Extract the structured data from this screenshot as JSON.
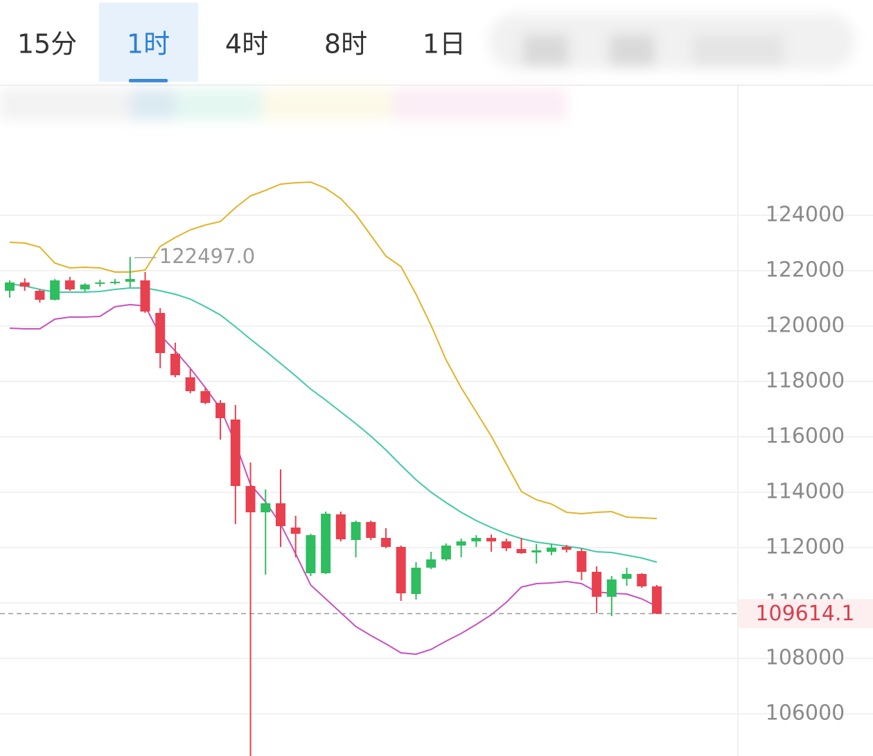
{
  "tabs": [
    {
      "label": "15分",
      "active": false
    },
    {
      "label": "1时",
      "active": true
    },
    {
      "label": "4时",
      "active": false
    },
    {
      "label": "8时",
      "active": false
    },
    {
      "label": "1日",
      "active": false
    }
  ],
  "chart_data": {
    "type": "candlestick",
    "up_color": "#2ebd5f",
    "down_color": "#e8404e",
    "ylim": [
      104475,
      127400
    ],
    "yticks": [
      106000,
      108000,
      110000,
      112000,
      114000,
      116000,
      118000,
      120000,
      122000,
      124000
    ],
    "grid": true,
    "max_marker": "122497.0",
    "ohlc": {
      "open": [
        121275,
        121575,
        121275,
        120950,
        121650,
        121325,
        121550,
        121575,
        121600,
        121650,
        120475,
        119000,
        118150,
        117650,
        117225,
        116625,
        114225,
        113275,
        113600,
        112725,
        111075,
        111075,
        113200,
        112275,
        112925,
        112350,
        112025,
        110325,
        111275,
        111575,
        112075,
        112225,
        112350,
        112225,
        111950,
        111825,
        111850,
        112025,
        111875,
        111125,
        110225,
        110875,
        111050,
        110600
      ],
      "high": [
        121650,
        121725,
        121325,
        121700,
        121775,
        121550,
        121675,
        121700,
        122497,
        121950,
        120650,
        119400,
        118450,
        117775,
        117325,
        117150,
        115075,
        114100,
        114825,
        113150,
        112500,
        113300,
        113300,
        112975,
        112975,
        112700,
        112075,
        111475,
        111850,
        112150,
        112325,
        112450,
        112475,
        112325,
        112350,
        112125,
        112150,
        112100,
        111975,
        111325,
        110975,
        111275,
        111075,
        110650
      ],
      "low": [
        121025,
        121275,
        120850,
        120925,
        121275,
        121250,
        121425,
        121500,
        121400,
        120475,
        118475,
        118150,
        117575,
        117175,
        115900,
        112850,
        104300,
        111025,
        112025,
        111650,
        110975,
        111050,
        112225,
        111650,
        112275,
        111975,
        110075,
        110125,
        111225,
        111525,
        111650,
        112025,
        111850,
        111875,
        111775,
        111425,
        111725,
        111825,
        110825,
        109625,
        109525,
        110625,
        110550,
        109600
      ],
      "close": [
        121575,
        121425,
        120950,
        121650,
        121325,
        121500,
        121575,
        121600,
        121700,
        120525,
        119025,
        118225,
        117650,
        117225,
        116675,
        114225,
        113275,
        113600,
        112775,
        112500,
        112450,
        113225,
        112300,
        112925,
        112350,
        112025,
        110350,
        111275,
        111575,
        112075,
        112225,
        112350,
        112225,
        111975,
        111800,
        111900,
        112000,
        111925,
        111125,
        110225,
        110850,
        111050,
        110600,
        109614.1
      ]
    },
    "bands": [
      {
        "color": "#e2b227",
        "values": [
          123025,
          123000,
          122850,
          122275,
          122100,
          122125,
          122100,
          121950,
          121950,
          122025,
          122875,
          123200,
          123475,
          123650,
          123775,
          124275,
          124700,
          124900,
          125125,
          125175,
          125200,
          124975,
          124600,
          124025,
          123275,
          122525,
          122150,
          121150,
          120025,
          118775,
          117775,
          116900,
          116025,
          115025,
          114025,
          113725,
          113575,
          113275,
          113225,
          113275,
          113300,
          113100,
          113075,
          113050
        ]
      },
      {
        "color": "#3fc9a5",
        "values": [
          121525,
          121450,
          121325,
          121225,
          121225,
          121225,
          121250,
          121325,
          121375,
          121375,
          121275,
          121150,
          120975,
          120700,
          120400,
          119975,
          119525,
          119100,
          118650,
          118200,
          117725,
          117325,
          116900,
          116475,
          116025,
          115525,
          114975,
          114450,
          114000,
          113625,
          113275,
          112975,
          112725,
          112500,
          112325,
          112200,
          112125,
          112050,
          111975,
          111850,
          111825,
          111725,
          111625,
          111475
        ]
      },
      {
        "color": "#c750bd",
        "values": [
          119925,
          119900,
          119900,
          120250,
          120325,
          120325,
          120350,
          120700,
          120775,
          120725,
          119675,
          119100,
          118475,
          117775,
          117025,
          115775,
          114275,
          113650,
          112850,
          111775,
          110650,
          110150,
          109650,
          109150,
          108825,
          108525,
          108200,
          108150,
          108325,
          108625,
          108900,
          109225,
          109575,
          110025,
          110575,
          110700,
          110725,
          110775,
          110700,
          110400,
          110350,
          110325,
          110150,
          109875
        ]
      }
    ]
  }
}
